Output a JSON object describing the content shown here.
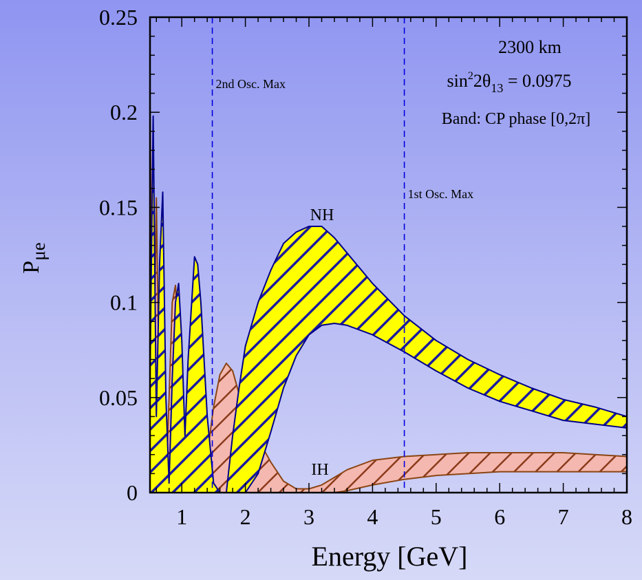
{
  "chart_data": {
    "type": "area",
    "xlabel": "Energy [GeV]",
    "ylabel_base": "P",
    "ylabel_sub": "μe",
    "xlim": [
      0.5,
      8
    ],
    "ylim": [
      0,
      0.25
    ],
    "x_ticks": [
      "1",
      "2",
      "3",
      "4",
      "5",
      "6",
      "7",
      "8"
    ],
    "y_ticks": [
      "0",
      "0.05",
      "0.1",
      "0.15",
      "0.2",
      "0.25"
    ],
    "annotations": {
      "baseline": "2300 km",
      "theta_prefix": "sin",
      "theta_sup": "2",
      "theta_mid": "2θ",
      "theta_sub": "13",
      "theta_value": " = 0.0975",
      "band": "Band: CP phase [0,2π]",
      "nh_label": "NH",
      "ih_label": "IH"
    },
    "osc_max_lines": [
      {
        "label": "2nd Osc. Max",
        "energy": 1.48
      },
      {
        "label": "1st Osc. Max",
        "energy": 4.5
      }
    ],
    "series": [
      {
        "name": "NH",
        "fill": "#ffff00",
        "stroke": "#00008b",
        "x": [
          0.5,
          0.55,
          0.6,
          0.65,
          0.7,
          0.75,
          0.8,
          0.85,
          0.9,
          0.95,
          1.0,
          1.05,
          1.1,
          1.2,
          1.25,
          1.3,
          1.4,
          1.5,
          1.6,
          1.7,
          1.8,
          1.9,
          2.0,
          2.2,
          2.4,
          2.6,
          2.8,
          3.0,
          3.2,
          3.4,
          3.6,
          4.0,
          4.5,
          5.0,
          5.5,
          6.0,
          6.5,
          7.0,
          7.5,
          8.0
        ],
        "upper": [
          0.06,
          0.198,
          0.04,
          0.12,
          0.158,
          0.05,
          0.005,
          0.06,
          0.1,
          0.11,
          0.08,
          0.03,
          0.07,
          0.124,
          0.12,
          0.1,
          0.04,
          0.005,
          0.0,
          0.0,
          0.03,
          0.055,
          0.077,
          0.1,
          0.117,
          0.131,
          0.137,
          0.14,
          0.14,
          0.134,
          0.126,
          0.11,
          0.093,
          0.08,
          0.07,
          0.062,
          0.055,
          0.049,
          0.045,
          0.04
        ],
        "lower": [
          0.0,
          0.0,
          0.0,
          0.0,
          0.0,
          0.0,
          0.0,
          0.0,
          0.0,
          0.0,
          0.0,
          0.0,
          0.0,
          0.0,
          0.0,
          0.0,
          0.0,
          0.0,
          0.0,
          0.0,
          0.0,
          0.0,
          0.0,
          0.01,
          0.032,
          0.055,
          0.072,
          0.083,
          0.088,
          0.089,
          0.088,
          0.083,
          0.074,
          0.064,
          0.055,
          0.048,
          0.043,
          0.038,
          0.036,
          0.034
        ]
      },
      {
        "name": "IH",
        "fill": "#f4b8b0",
        "stroke": "#8b4513",
        "x": [
          0.5,
          0.55,
          0.6,
          0.65,
          0.7,
          0.75,
          0.8,
          0.85,
          0.9,
          0.95,
          1.0,
          1.05,
          1.1,
          1.2,
          1.25,
          1.3,
          1.4,
          1.5,
          1.6,
          1.7,
          1.8,
          1.9,
          2.0,
          2.2,
          2.4,
          2.6,
          2.8,
          3.0,
          3.2,
          3.4,
          3.6,
          4.0,
          4.5,
          5.0,
          5.5,
          6.0,
          6.5,
          7.0,
          7.5,
          8.0
        ],
        "upper": [
          0.205,
          0.03,
          0.155,
          0.04,
          0.04,
          0.002,
          0.05,
          0.1,
          0.109,
          0.08,
          0.02,
          0.005,
          0.0,
          0.0,
          0.015,
          0.01,
          0.02,
          0.045,
          0.062,
          0.068,
          0.064,
          0.052,
          0.042,
          0.028,
          0.016,
          0.006,
          0.002,
          0.002,
          0.004,
          0.008,
          0.012,
          0.017,
          0.019,
          0.02,
          0.021,
          0.021,
          0.021,
          0.021,
          0.02,
          0.019
        ],
        "lower": [
          0.0,
          0.0,
          0.0,
          0.0,
          0.0,
          0.0,
          0.0,
          0.0,
          0.0,
          0.0,
          0.0,
          0.0,
          0.0,
          0.0,
          0.0,
          0.0,
          0.0,
          0.0,
          0.0,
          0.0,
          0.0,
          0.0,
          0.0,
          0.0,
          0.0,
          0.0,
          0.0,
          0.0,
          0.0,
          0.0,
          0.001,
          0.004,
          0.007,
          0.009,
          0.01,
          0.011,
          0.011,
          0.011,
          0.011,
          0.011
        ]
      }
    ]
  }
}
